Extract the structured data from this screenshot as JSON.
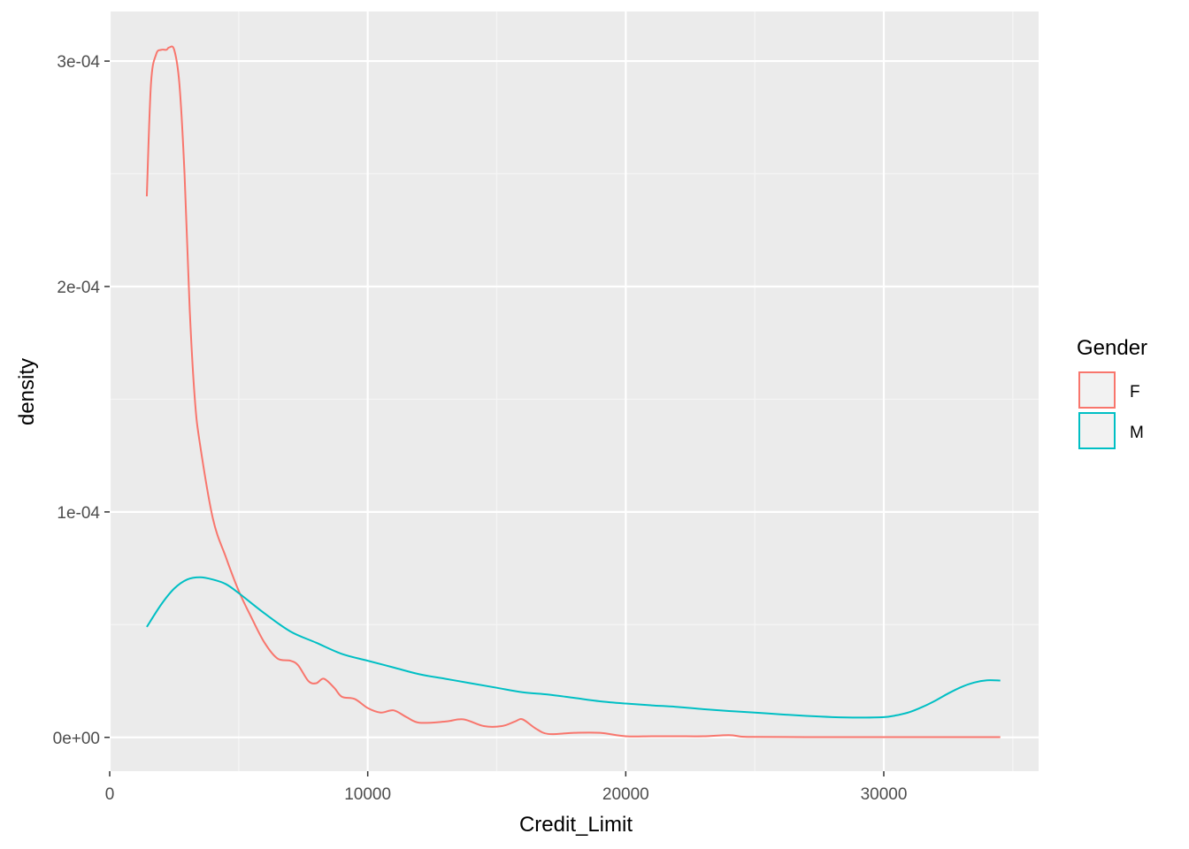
{
  "chart_data": {
    "type": "line",
    "xlabel": "Credit_Limit",
    "ylabel": "density",
    "xlim": [
      0,
      36000
    ],
    "ylim": [
      -1.5e-05,
      0.000322
    ],
    "x_ticks": [
      0,
      10000,
      20000,
      30000
    ],
    "x_tick_labels": [
      "0",
      "10000",
      "20000",
      "30000"
    ],
    "y_ticks": [
      0,
      0.0001,
      0.0002,
      0.0003
    ],
    "y_tick_labels": [
      "0e+00",
      "1e-04",
      "2e-04",
      "3e-04"
    ],
    "grid": true,
    "legend": {
      "title": "Gender",
      "position": "right"
    },
    "series": [
      {
        "name": "F",
        "color": "#F8766D",
        "x": [
          1438,
          1600,
          1800,
          2000,
          2200,
          2300,
          2500,
          2700,
          2900,
          3100,
          3300,
          3500,
          4000,
          4500,
          5000,
          5500,
          6000,
          6500,
          7000,
          7300,
          7700,
          8000,
          8300,
          8700,
          9000,
          9500,
          10000,
          10500,
          11000,
          11500,
          12000,
          13000,
          13700,
          14500,
          15200,
          15700,
          16000,
          16500,
          17000,
          18000,
          19000,
          20000,
          21000,
          22000,
          23000,
          24000,
          24500,
          25000,
          27000,
          30000,
          33000,
          34516
        ],
        "y": [
          0.00024,
          0.00029,
          0.000303,
          0.000305,
          0.000305,
          0.000306,
          0.000305,
          0.00029,
          0.00025,
          0.00019,
          0.00015,
          0.00013,
          9.7e-05,
          8e-05,
          6.5e-05,
          5.3e-05,
          4.2e-05,
          3.5e-05,
          3.4e-05,
          3.2e-05,
          2.5e-05,
          2.4e-05,
          2.6e-05,
          2.2e-05,
          1.8e-05,
          1.7e-05,
          1.3e-05,
          1.1e-05,
          1.2e-05,
          9e-06,
          6.5e-06,
          7e-06,
          8e-06,
          5e-06,
          5e-06,
          7e-06,
          8e-06,
          4e-06,
          1.5e-06,
          2e-06,
          2e-06,
          5e-07,
          5e-07,
          5e-07,
          5e-07,
          1e-06,
          3e-07,
          2e-07,
          1e-07,
          1e-07,
          1e-07,
          1e-07
        ]
      },
      {
        "name": "M",
        "color": "#00BFC4",
        "x": [
          1438,
          2000,
          2500,
          3000,
          3500,
          4000,
          4500,
          5000,
          6000,
          7000,
          8000,
          9000,
          10000,
          11000,
          12000,
          13000,
          14000,
          15000,
          16000,
          17000,
          18000,
          19000,
          20000,
          21000,
          22000,
          23000,
          24000,
          25000,
          26000,
          27000,
          28000,
          29000,
          30000,
          30500,
          31000,
          31500,
          32000,
          32500,
          33000,
          33500,
          34000,
          34516
        ],
        "y": [
          4.9e-05,
          5.9e-05,
          6.6e-05,
          7e-05,
          7.1e-05,
          7e-05,
          6.8e-05,
          6.4e-05,
          5.5e-05,
          4.7e-05,
          4.2e-05,
          3.7e-05,
          3.4e-05,
          3.1e-05,
          2.8e-05,
          2.6e-05,
          2.4e-05,
          2.2e-05,
          2e-05,
          1.9e-05,
          1.75e-05,
          1.6e-05,
          1.5e-05,
          1.42e-05,
          1.35e-05,
          1.25e-05,
          1.17e-05,
          1.1e-05,
          1.02e-05,
          9.5e-06,
          9e-06,
          8.8e-06,
          9e-06,
          9.8e-06,
          1.12e-05,
          1.35e-05,
          1.63e-05,
          1.95e-05,
          2.23e-05,
          2.43e-05,
          2.53e-05,
          2.52e-05
        ]
      }
    ]
  }
}
